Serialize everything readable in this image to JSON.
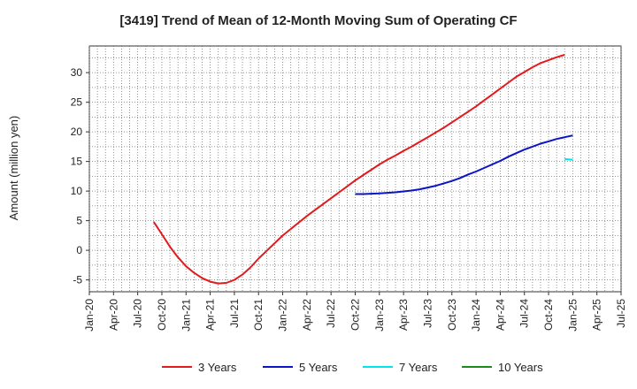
{
  "chart_data": {
    "type": "line",
    "title": "[3419]  Trend of Mean of 12-Month Moving Sum of Operating CF",
    "ylabel": "Amount (million yen)",
    "xlabel": "",
    "x_ticks": [
      "Jan-20",
      "Apr-20",
      "Jul-20",
      "Oct-20",
      "Jan-21",
      "Apr-21",
      "Jul-21",
      "Oct-21",
      "Jan-22",
      "Apr-22",
      "Jul-22",
      "Oct-22",
      "Jan-23",
      "Apr-23",
      "Jul-23",
      "Oct-23",
      "Jan-24",
      "Apr-24",
      "Jul-24",
      "Oct-24",
      "Jan-25",
      "Apr-25",
      "Jul-25"
    ],
    "y_ticks": [
      -5,
      0,
      5,
      10,
      15,
      20,
      25,
      30
    ],
    "ylim": [
      -7,
      34.5
    ],
    "xlim": [
      "2020-01",
      "2025-07"
    ],
    "grid": true,
    "legend_position": "bottom",
    "series": [
      {
        "name": "3 Years",
        "color": "#e31a1c",
        "points": [
          [
            "2020-09",
            4.8
          ],
          [
            "2020-10",
            2.7
          ],
          [
            "2020-11",
            0.6
          ],
          [
            "2020-12",
            -1.2
          ],
          [
            "2021-01",
            -2.7
          ],
          [
            "2021-02",
            -3.8
          ],
          [
            "2021-03",
            -4.7
          ],
          [
            "2021-04",
            -5.3
          ],
          [
            "2021-05",
            -5.6
          ],
          [
            "2021-06",
            -5.5
          ],
          [
            "2021-07",
            -5.0
          ],
          [
            "2021-08",
            -4.1
          ],
          [
            "2021-09",
            -2.9
          ],
          [
            "2021-10",
            -1.4
          ],
          [
            "2021-11",
            -0.1
          ],
          [
            "2021-12",
            1.2
          ],
          [
            "2022-01",
            2.5
          ],
          [
            "2022-02",
            3.6
          ],
          [
            "2022-03",
            4.7
          ],
          [
            "2022-04",
            5.8
          ],
          [
            "2022-05",
            6.8
          ],
          [
            "2022-06",
            7.8
          ],
          [
            "2022-07",
            8.8
          ],
          [
            "2022-08",
            9.8
          ],
          [
            "2022-09",
            10.8
          ],
          [
            "2022-10",
            11.8
          ],
          [
            "2022-11",
            12.7
          ],
          [
            "2022-12",
            13.6
          ],
          [
            "2023-01",
            14.5
          ],
          [
            "2023-02",
            15.3
          ],
          [
            "2023-03",
            16.0
          ],
          [
            "2023-04",
            16.8
          ],
          [
            "2023-05",
            17.5
          ],
          [
            "2023-06",
            18.3
          ],
          [
            "2023-07",
            19.1
          ],
          [
            "2023-08",
            19.9
          ],
          [
            "2023-09",
            20.7
          ],
          [
            "2023-10",
            21.6
          ],
          [
            "2023-11",
            22.5
          ],
          [
            "2023-12",
            23.4
          ],
          [
            "2024-01",
            24.3
          ],
          [
            "2024-02",
            25.3
          ],
          [
            "2024-03",
            26.3
          ],
          [
            "2024-04",
            27.3
          ],
          [
            "2024-05",
            28.3
          ],
          [
            "2024-06",
            29.3
          ],
          [
            "2024-07",
            30.1
          ],
          [
            "2024-08",
            30.9
          ],
          [
            "2024-09",
            31.6
          ],
          [
            "2024-10",
            32.1
          ],
          [
            "2024-11",
            32.6
          ],
          [
            "2024-12",
            33.0
          ]
        ]
      },
      {
        "name": "5 Years",
        "color": "#0a14c8",
        "points": [
          [
            "2022-10",
            9.5
          ],
          [
            "2022-11",
            9.5
          ],
          [
            "2022-12",
            9.55
          ],
          [
            "2023-01",
            9.6
          ],
          [
            "2023-02",
            9.7
          ],
          [
            "2023-03",
            9.8
          ],
          [
            "2023-04",
            9.95
          ],
          [
            "2023-05",
            10.1
          ],
          [
            "2023-06",
            10.3
          ],
          [
            "2023-07",
            10.6
          ],
          [
            "2023-08",
            10.9
          ],
          [
            "2023-09",
            11.3
          ],
          [
            "2023-10",
            11.7
          ],
          [
            "2023-11",
            12.2
          ],
          [
            "2023-12",
            12.8
          ],
          [
            "2024-01",
            13.3
          ],
          [
            "2024-02",
            13.9
          ],
          [
            "2024-03",
            14.5
          ],
          [
            "2024-04",
            15.1
          ],
          [
            "2024-05",
            15.8
          ],
          [
            "2024-06",
            16.4
          ],
          [
            "2024-07",
            17.0
          ],
          [
            "2024-08",
            17.5
          ],
          [
            "2024-09",
            18.0
          ],
          [
            "2024-10",
            18.4
          ],
          [
            "2024-11",
            18.8
          ],
          [
            "2024-12",
            19.1
          ],
          [
            "2025-01",
            19.4
          ]
        ]
      },
      {
        "name": "7 Years",
        "color": "#00e5ee",
        "points": [
          [
            "2024-12",
            15.4
          ],
          [
            "2025-01",
            15.3
          ]
        ]
      },
      {
        "name": "10 Years",
        "color": "#1a8a1a",
        "points": []
      }
    ]
  }
}
